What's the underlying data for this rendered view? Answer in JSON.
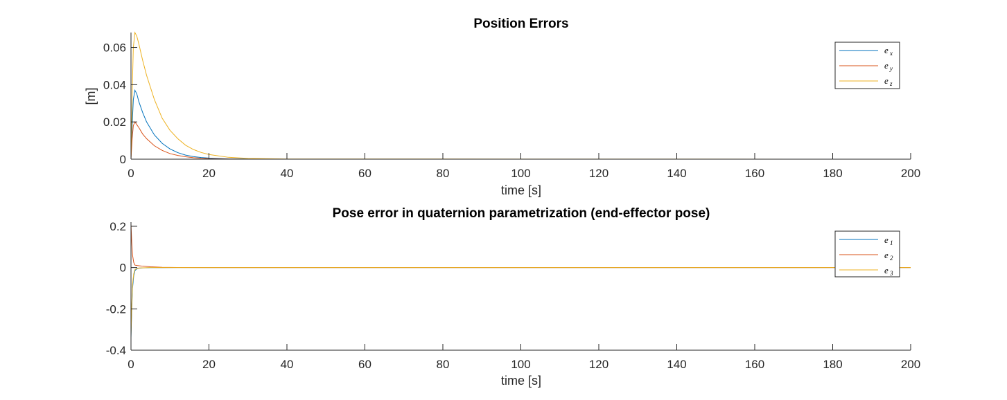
{
  "chart_data": [
    {
      "type": "line",
      "title": "Position Errors",
      "xlabel": "time [s]",
      "ylabel": "[m]",
      "xlim": [
        0,
        200
      ],
      "ylim": [
        0,
        0.068
      ],
      "xticks": [
        "0",
        "20",
        "40",
        "60",
        "80",
        "100",
        "120",
        "140",
        "160",
        "180",
        "200"
      ],
      "yticks": [
        "0",
        "0.02",
        "0.04",
        "0.06"
      ],
      "ytick_values": [
        0,
        0.02,
        0.04,
        0.06
      ],
      "grid": false,
      "legend_position": "top-right",
      "series": [
        {
          "name": "e",
          "sub": "x",
          "color": "#0072BD",
          "x": [
            0,
            0.3,
            0.6,
            1.0,
            1.5,
            2,
            3,
            4,
            6,
            8,
            10,
            12,
            14,
            16,
            18,
            20,
            25,
            30,
            40,
            200
          ],
          "y": [
            0,
            0.018,
            0.032,
            0.037,
            0.035,
            0.031,
            0.025,
            0.02,
            0.013,
            0.0085,
            0.0055,
            0.0035,
            0.0022,
            0.0014,
            0.0009,
            0.0006,
            0.0002,
            0.0001,
            0,
            0
          ]
        },
        {
          "name": "e",
          "sub": "y",
          "color": "#D95319",
          "x": [
            0,
            0.3,
            0.6,
            1.0,
            1.5,
            2,
            3,
            4,
            6,
            8,
            10,
            12,
            14,
            16,
            18,
            20,
            25,
            30,
            40,
            200
          ],
          "y": [
            0,
            0.011,
            0.018,
            0.02,
            0.0185,
            0.017,
            0.0135,
            0.011,
            0.0072,
            0.0047,
            0.003,
            0.002,
            0.0013,
            0.0008,
            0.0005,
            0.0003,
            0.0001,
            0,
            0,
            0
          ]
        },
        {
          "name": "e",
          "sub": "z",
          "color": "#EDB120",
          "x": [
            0,
            0.3,
            0.6,
            1.0,
            1.5,
            2,
            3,
            4,
            6,
            8,
            10,
            12,
            14,
            16,
            18,
            20,
            25,
            30,
            40,
            200
          ],
          "y": [
            0,
            0.035,
            0.06,
            0.068,
            0.066,
            0.062,
            0.053,
            0.045,
            0.032,
            0.022,
            0.0155,
            0.011,
            0.0075,
            0.0052,
            0.0036,
            0.0025,
            0.001,
            0.0004,
            0.0001,
            0
          ]
        }
      ]
    },
    {
      "type": "line",
      "title": "Pose error in quaternion parametrization (end-effector pose)",
      "xlabel": "time [s]",
      "ylabel": "",
      "xlim": [
        0,
        200
      ],
      "ylim": [
        -0.4,
        0.22
      ],
      "xticks": [
        "0",
        "20",
        "40",
        "60",
        "80",
        "100",
        "120",
        "140",
        "160",
        "180",
        "200"
      ],
      "yticks": [
        "-0.4",
        "-0.2",
        "0",
        "0.2"
      ],
      "ytick_values": [
        -0.4,
        -0.2,
        0,
        0.2
      ],
      "grid": false,
      "legend_position": "top-right",
      "series": [
        {
          "name": "e",
          "sub": "1",
          "color": "#0072BD",
          "x": [
            0,
            0.2,
            0.4,
            0.7,
            1.0,
            1.5,
            2,
            3,
            5,
            8,
            12,
            20,
            200
          ],
          "y": [
            -0.34,
            -0.2,
            -0.1,
            -0.04,
            -0.015,
            -0.006,
            -0.003,
            -0.0015,
            -0.0005,
            -0.0002,
            0,
            0,
            0
          ]
        },
        {
          "name": "e",
          "sub": "2",
          "color": "#D95319",
          "x": [
            0,
            0.2,
            0.4,
            0.7,
            1.0,
            1.5,
            2,
            3,
            5,
            8,
            12,
            20,
            200
          ],
          "y": [
            0.21,
            0.12,
            0.06,
            0.025,
            0.012,
            0.01,
            0.009,
            0.007,
            0.004,
            0.0015,
            0.0005,
            0,
            0
          ]
        },
        {
          "name": "e",
          "sub": "3",
          "color": "#EDB120",
          "x": [
            0,
            0.2,
            0.4,
            0.7,
            1.0,
            1.5,
            2,
            3,
            5,
            8,
            12,
            20,
            200
          ],
          "y": [
            -0.33,
            -0.18,
            -0.08,
            -0.03,
            -0.01,
            -0.004,
            -0.002,
            -0.001,
            0,
            0,
            0,
            0,
            0
          ]
        }
      ]
    }
  ]
}
